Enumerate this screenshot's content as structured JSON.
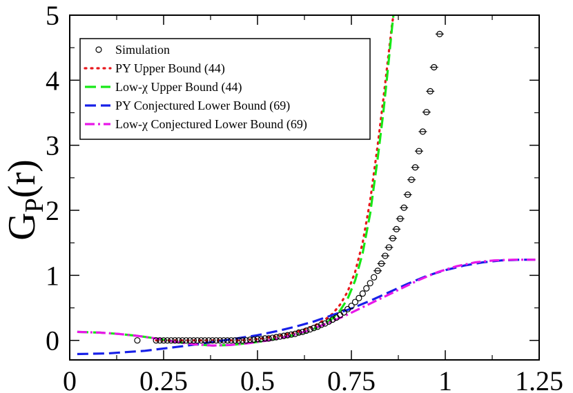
{
  "chart_data": {
    "type": "line",
    "title": "",
    "xlabel": "",
    "ylabel": "G_P(r)",
    "ylabel_main": "G",
    "ylabel_sub": "P",
    "ylabel_rest": "(r)",
    "xlim": [
      0,
      1.25
    ],
    "ylim": [
      -0.3,
      5
    ],
    "grid": false,
    "legend_position": "top-left",
    "x_ticks": [
      0,
      0.25,
      0.5,
      0.75,
      1,
      1.25
    ],
    "x_tick_labels": [
      "0",
      "0.25",
      "0.5",
      "0.75",
      "1",
      "1.25"
    ],
    "y_ticks": [
      0,
      1,
      2,
      3,
      4,
      5
    ],
    "y_tick_labels": [
      "0",
      "1",
      "2",
      "3",
      "4",
      "5"
    ],
    "series": [
      {
        "name": "Simulation",
        "style": "markers",
        "color": "#000000",
        "x": [
          0.18,
          0.23,
          0.24,
          0.25,
          0.26,
          0.27,
          0.28,
          0.29,
          0.3,
          0.31,
          0.32,
          0.33,
          0.34,
          0.35,
          0.36,
          0.37,
          0.38,
          0.39,
          0.4,
          0.41,
          0.42,
          0.43,
          0.44,
          0.45,
          0.46,
          0.47,
          0.48,
          0.49,
          0.5,
          0.51,
          0.52,
          0.53,
          0.54,
          0.55,
          0.56,
          0.57,
          0.58,
          0.59,
          0.6,
          0.61,
          0.62,
          0.63,
          0.64,
          0.65,
          0.66,
          0.67,
          0.68,
          0.69,
          0.7,
          0.71,
          0.72,
          0.73,
          0.74,
          0.75,
          0.76,
          0.77,
          0.78,
          0.79,
          0.8,
          0.81,
          0.82,
          0.83,
          0.84,
          0.85,
          0.86,
          0.87,
          0.88,
          0.89,
          0.9,
          0.91,
          0.92,
          0.93,
          0.94,
          0.95,
          0.96,
          0.97,
          0.985
        ],
        "values": [
          0.0,
          0.0,
          0.0,
          0.0,
          0.0,
          0.0,
          0.0,
          0.0,
          0.0,
          0.0,
          0.0,
          0.0,
          0.0,
          0.0,
          0.0,
          0.0,
          0.0,
          0.0,
          0.0,
          0.0,
          0.0,
          0.0,
          0.0,
          0.0,
          0.0,
          0.0,
          0.01,
          0.01,
          0.02,
          0.02,
          0.03,
          0.03,
          0.04,
          0.05,
          0.06,
          0.07,
          0.08,
          0.09,
          0.1,
          0.12,
          0.13,
          0.15,
          0.17,
          0.19,
          0.21,
          0.24,
          0.26,
          0.29,
          0.32,
          0.35,
          0.39,
          0.43,
          0.48,
          0.53,
          0.59,
          0.65,
          0.72,
          0.8,
          0.88,
          0.97,
          1.07,
          1.18,
          1.3,
          1.43,
          1.57,
          1.71,
          1.87,
          2.04,
          2.24,
          2.47,
          2.66,
          2.91,
          3.21,
          3.51,
          3.83,
          4.2,
          4.71
        ]
      },
      {
        "name": "PY Upper Bound (44)",
        "style": "dotted",
        "color": "#e8171c",
        "x": [
          0.23,
          0.3,
          0.4,
          0.45,
          0.5,
          0.55,
          0.6,
          0.65,
          0.68,
          0.7,
          0.72,
          0.74,
          0.76,
          0.78,
          0.8,
          0.82,
          0.835,
          0.845,
          0.852,
          0.858,
          0.862
        ],
        "values": [
          0.0,
          0.0,
          0.0,
          0.0,
          0.02,
          0.06,
          0.12,
          0.22,
          0.32,
          0.41,
          0.55,
          0.75,
          1.05,
          1.5,
          2.15,
          3.0,
          3.7,
          4.2,
          4.55,
          4.85,
          5.0
        ]
      },
      {
        "name": "Low-χ Upper Bound (44)",
        "style": "dashed",
        "color": "#17e817",
        "x": [
          0.02,
          0.08,
          0.13,
          0.18,
          0.23,
          0.28,
          0.33,
          0.38,
          0.43,
          0.48,
          0.53,
          0.58,
          0.63,
          0.66,
          0.68,
          0.7,
          0.72,
          0.74,
          0.76,
          0.78,
          0.8,
          0.82,
          0.835,
          0.845,
          0.852,
          0.858,
          0.862
        ],
        "values": [
          0.13,
          0.12,
          0.1,
          0.07,
          0.03,
          -0.02,
          -0.06,
          -0.08,
          -0.07,
          -0.04,
          0.0,
          0.06,
          0.13,
          0.2,
          0.26,
          0.34,
          0.46,
          0.64,
          0.92,
          1.34,
          1.95,
          2.8,
          3.5,
          4.05,
          4.45,
          4.8,
          5.0
        ]
      },
      {
        "name": "PY Conjectured Lower Bound (69)",
        "style": "dashed",
        "color": "#1720e8",
        "x": [
          0.02,
          0.1,
          0.2,
          0.3,
          0.4,
          0.5,
          0.55,
          0.6,
          0.65,
          0.7,
          0.75,
          0.8,
          0.85,
          0.9,
          0.95,
          1.0,
          1.05,
          1.1,
          1.15,
          1.2,
          1.24
        ],
        "values": [
          -0.21,
          -0.2,
          -0.16,
          -0.09,
          -0.01,
          0.08,
          0.14,
          0.21,
          0.29,
          0.39,
          0.49,
          0.61,
          0.74,
          0.87,
          0.99,
          1.08,
          1.15,
          1.2,
          1.23,
          1.24,
          1.24
        ]
      },
      {
        "name": "Low-χ Conjectured Lower Bound (69)",
        "style": "dashdot",
        "color": "#e817e8",
        "x": [
          0.02,
          0.08,
          0.13,
          0.18,
          0.23,
          0.28,
          0.33,
          0.38,
          0.43,
          0.48,
          0.53,
          0.58,
          0.63,
          0.68,
          0.73,
          0.78,
          0.83,
          0.88,
          0.93,
          0.98,
          1.03,
          1.08,
          1.13,
          1.18,
          1.24
        ],
        "values": [
          0.13,
          0.12,
          0.1,
          0.07,
          0.03,
          -0.02,
          -0.06,
          -0.08,
          -0.07,
          -0.04,
          0.0,
          0.06,
          0.14,
          0.25,
          0.37,
          0.51,
          0.65,
          0.79,
          0.93,
          1.05,
          1.14,
          1.2,
          1.23,
          1.24,
          1.24
        ]
      }
    ]
  }
}
